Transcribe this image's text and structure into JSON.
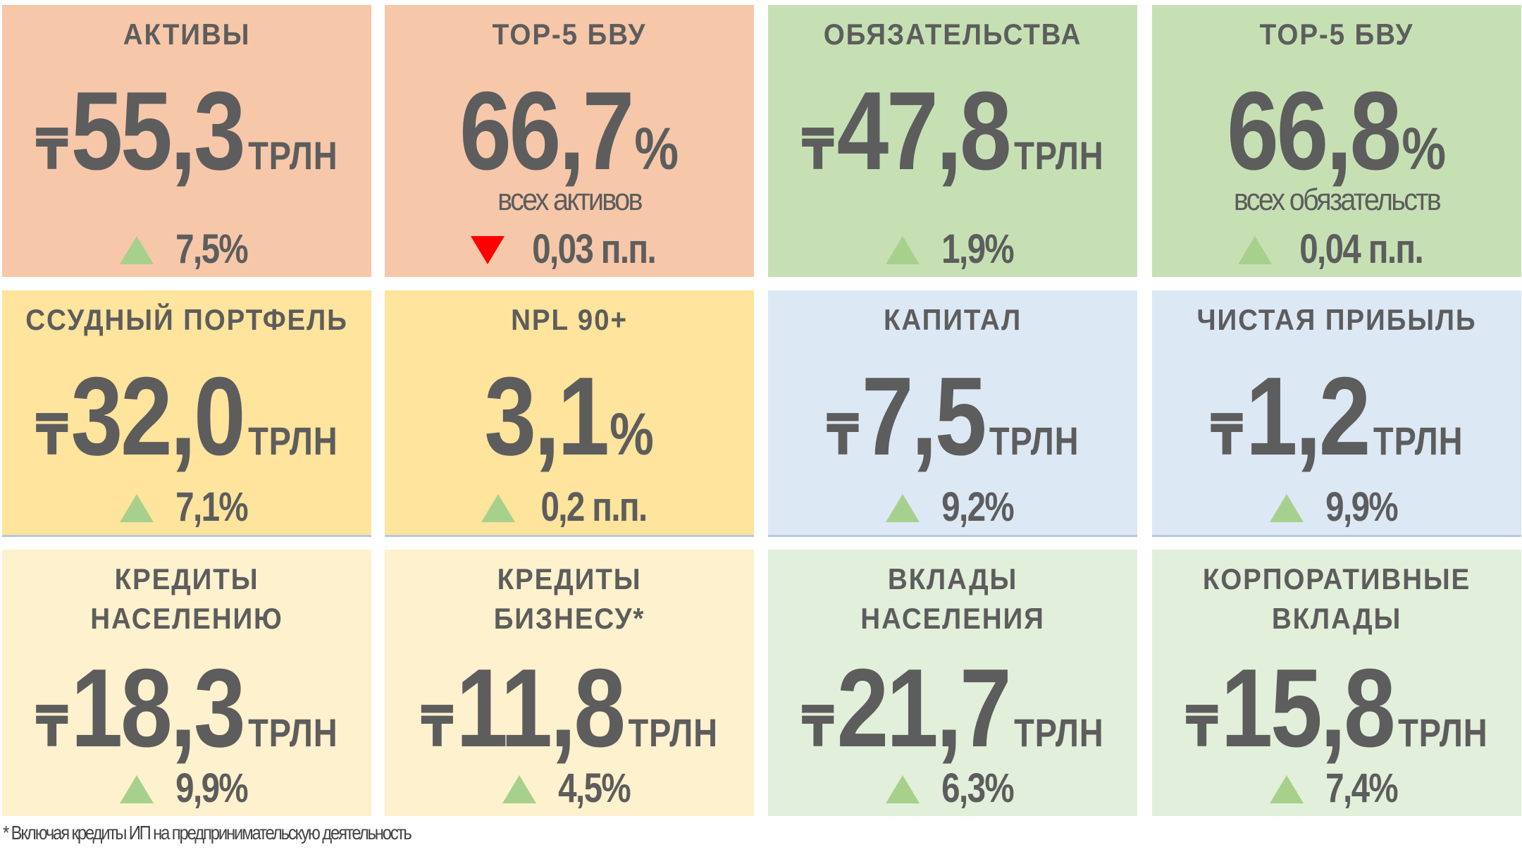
{
  "tiles": [
    {
      "title": "АКТИВЫ",
      "currency": "₸",
      "value": "55,3",
      "unit": "ТРЛН",
      "change": "7,5%",
      "trend": "up",
      "color": "#f6c7a9"
    },
    {
      "title": "TOP-5 БВУ",
      "value": "66,7",
      "unit": "%",
      "subtitle": "всех активов",
      "change": "0,03 п.п.",
      "trend": "down",
      "color": "#f6c7a9"
    },
    {
      "title": "ОБЯЗАТЕЛЬСТВА",
      "currency": "₸",
      "value": "47,8",
      "unit": "ТРЛН",
      "change": "1,9%",
      "trend": "up",
      "color": "#c6e0b4"
    },
    {
      "title": "TOP-5 БВУ",
      "value": "66,8",
      "unit": "%",
      "subtitle": "всех обязательств",
      "change": "0,04 п.п.",
      "trend": "up",
      "color": "#c6e0b4"
    },
    {
      "title": "ССУДНЫЙ ПОРТФЕЛЬ",
      "currency": "₸",
      "value": "32,0",
      "unit": "ТРЛН",
      "change": "7,1%",
      "trend": "up",
      "color": "#fee49c"
    },
    {
      "title": "NPL 90+",
      "value": "3,1",
      "unit": "%",
      "change": "0,2 п.п.",
      "trend": "up",
      "color": "#fee49c"
    },
    {
      "title": "КАПИТАЛ",
      "currency": "₸",
      "value": "7,5",
      "unit": "ТРЛН",
      "change": "9,2%",
      "trend": "up",
      "color": "#dde8f5"
    },
    {
      "title": "ЧИСТАЯ ПРИБЫЛЬ",
      "currency": "₸",
      "value": "1,2",
      "unit": "ТРЛН",
      "change": "9,9%",
      "trend": "up",
      "color": "#dde8f5"
    },
    {
      "title": "КРЕДИТЫ НАСЕЛЕНИЮ",
      "currency": "₸",
      "value": "18,3",
      "unit": "ТРЛН",
      "change": "9,9%",
      "trend": "up",
      "color": "#fef1cd"
    },
    {
      "title": "КРЕДИТЫ БИЗНЕСУ*",
      "currency": "₸",
      "value": "11,8",
      "unit": "ТРЛН",
      "change": "4,5%",
      "trend": "up",
      "color": "#fef1cd"
    },
    {
      "title": "ВКЛАДЫ НАСЕЛЕНИЯ",
      "currency": "₸",
      "value": "21,7",
      "unit": "ТРЛН",
      "change": "6,3%",
      "trend": "up",
      "color": "#e2efda"
    },
    {
      "title": "КОРПОРАТИВНЫЕ ВКЛАДЫ",
      "currency": "₸",
      "value": "15,8",
      "unit": "ТРЛН",
      "change": "7,4%",
      "trend": "up",
      "color": "#e2efda"
    }
  ],
  "footnote": "* Включая кредиты ИП на предпринимательскую деятельность"
}
